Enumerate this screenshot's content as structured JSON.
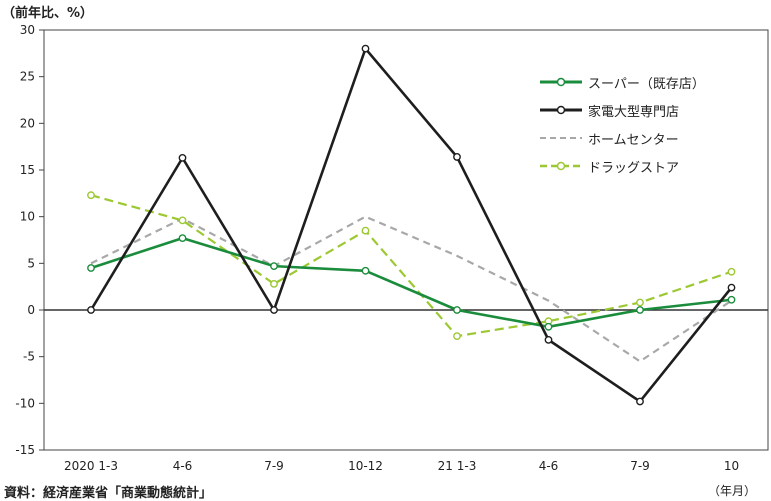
{
  "chart_data": {
    "type": "line",
    "y_unit_label": "（前年比、%）",
    "x_unit_label": "（年月）",
    "source": "資料：経済産業省「商業動態統計」",
    "categories": [
      "2020 1-3",
      "4-6",
      "7-9",
      "10-12",
      "21 1-3",
      "4-6",
      "7-9",
      "10"
    ],
    "ylim": [
      -15,
      30
    ],
    "yticks": [
      30,
      25,
      20,
      15,
      10,
      5,
      0,
      -5,
      -10,
      -15
    ],
    "grid": false,
    "legend_position": "top-right",
    "series": [
      {
        "name": "スーパー（既存店）",
        "color": "#1a8c3c",
        "style": "solid",
        "marker": "open-circle",
        "values": [
          4.5,
          7.7,
          4.7,
          4.2,
          0.0,
          -1.8,
          0.0,
          1.1
        ]
      },
      {
        "name": "家電大型専門店",
        "color": "#1e1e1e",
        "style": "solid",
        "marker": "open-circle",
        "values": [
          0.0,
          16.3,
          0.0,
          28.0,
          16.4,
          -3.2,
          -9.8,
          2.4
        ]
      },
      {
        "name": "ホームセンター",
        "color": "#a8a8a8",
        "style": "dashed",
        "marker": "none",
        "values": [
          5.0,
          9.8,
          4.7,
          10.0,
          5.8,
          1.0,
          -5.5,
          1.0
        ]
      },
      {
        "name": "ドラッグストア",
        "color": "#9cc832",
        "style": "dashed",
        "marker": "open-circle",
        "values": [
          12.3,
          9.6,
          2.8,
          8.5,
          -2.8,
          -1.2,
          0.8,
          4.1
        ]
      }
    ]
  }
}
